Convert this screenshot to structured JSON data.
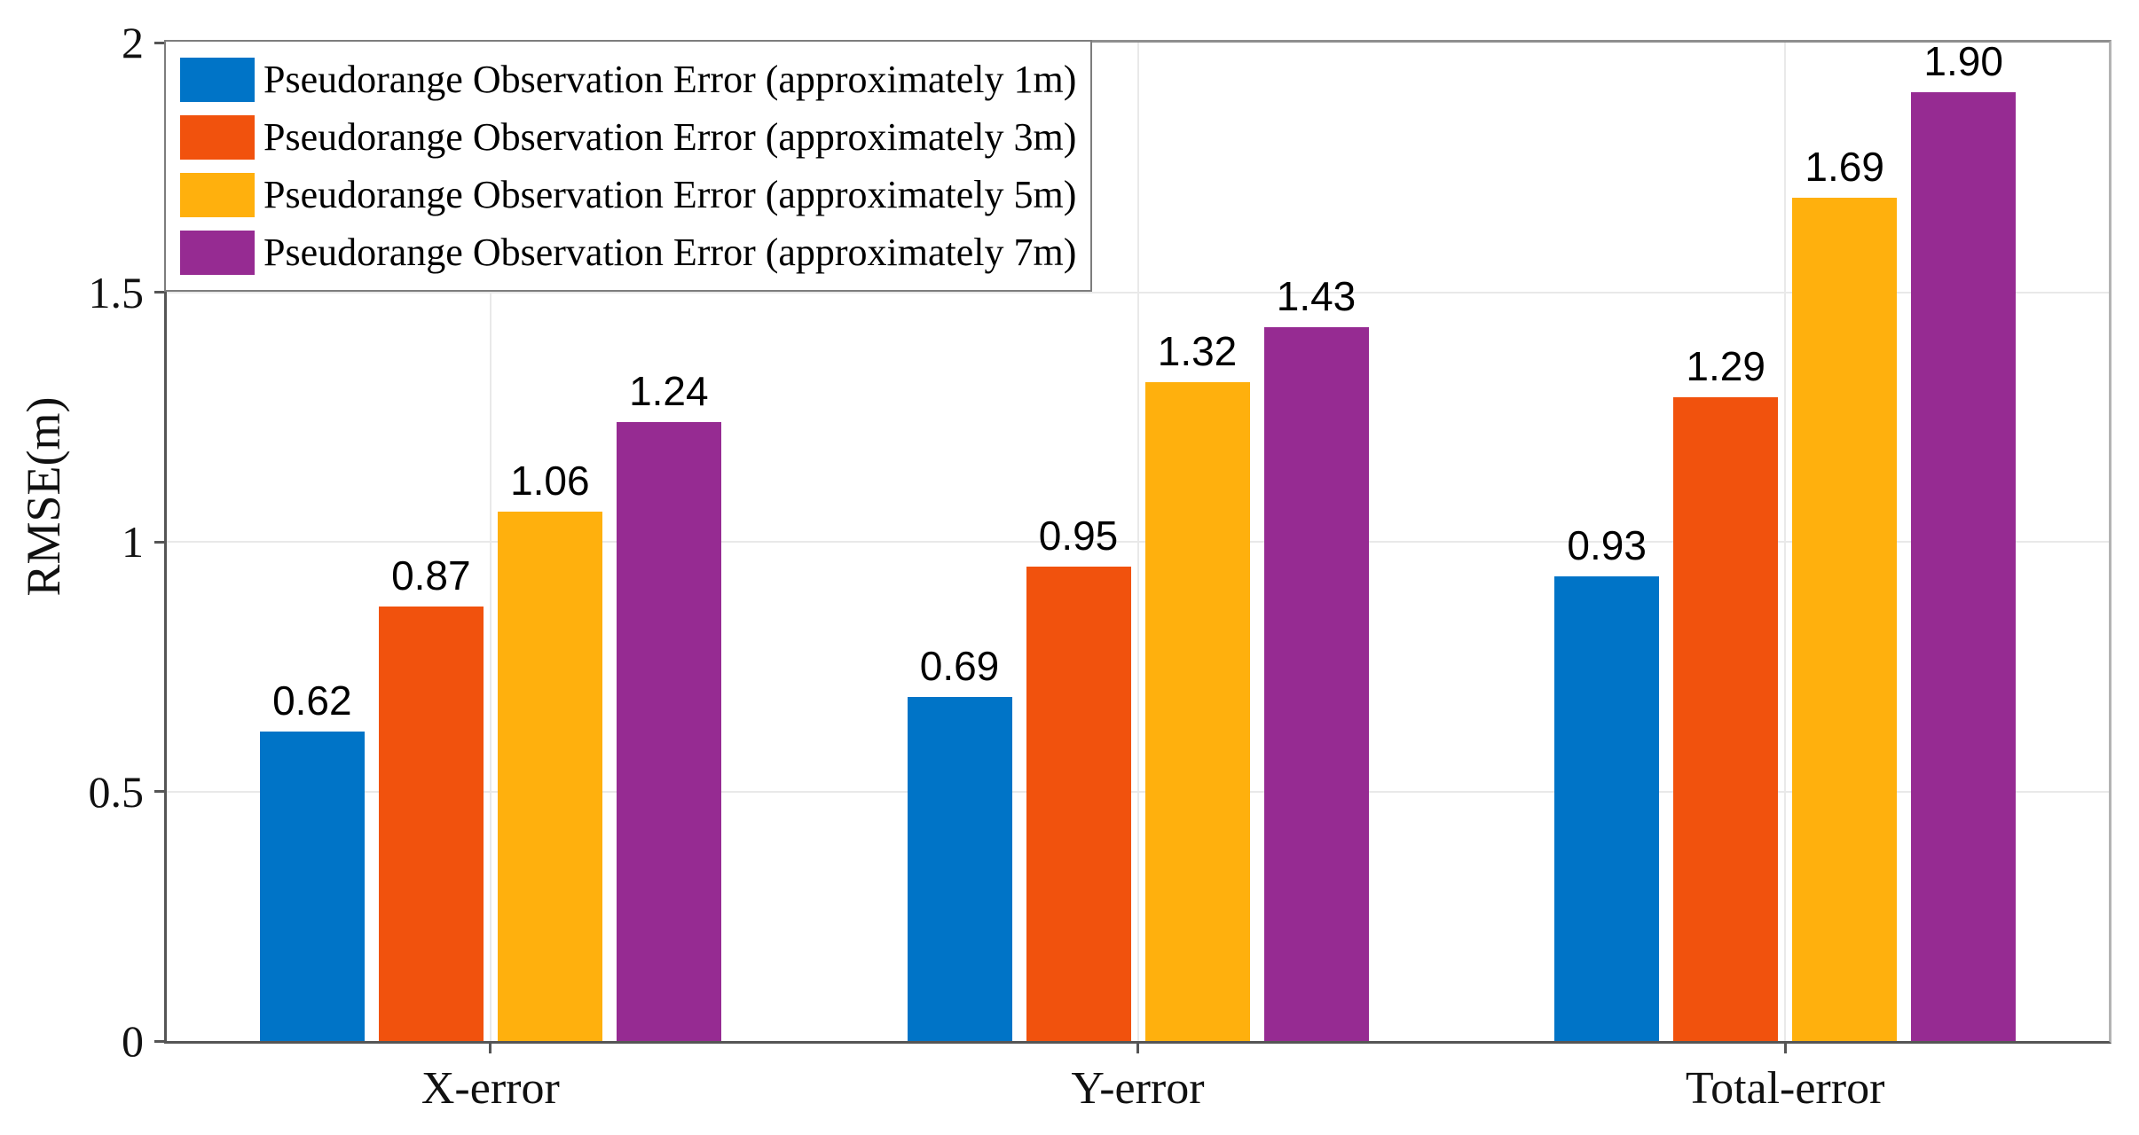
{
  "figure": {
    "background": "#ffffff",
    "axis_color": "#555555",
    "box_color": "#9a9a9a",
    "grid_color": "#e9e9e9"
  },
  "chart_data": {
    "type": "bar",
    "title": "",
    "categories": [
      "X-error",
      "Y-error",
      "Total-error"
    ],
    "series": [
      {
        "name": "Pseudorange Observation Error (approximately 1m)",
        "color": "#0074C7",
        "values": [
          0.62,
          0.69,
          0.93
        ]
      },
      {
        "name": "Pseudorange Observation Error (approximately 3m)",
        "color": "#F1520D",
        "values": [
          0.87,
          0.95,
          1.29
        ]
      },
      {
        "name": "Pseudorange Observation Error (approximately 5m)",
        "color": "#FFB00D",
        "values": [
          1.06,
          1.32,
          1.69
        ]
      },
      {
        "name": "Pseudorange Observation Error (approximately 7m)",
        "color": "#962B92",
        "values": [
          1.24,
          1.43,
          1.9
        ]
      }
    ],
    "xlabel": "",
    "ylabel": "RMSE(m)",
    "ylim": [
      0,
      2
    ],
    "yticks": [
      0,
      0.5,
      1,
      1.5,
      2
    ],
    "ytick_labels": [
      "0",
      "0.5",
      "1",
      "1.5",
      "2"
    ],
    "grid": true,
    "bar_value_labels": [
      [
        "0.62",
        "0.87",
        "1.06",
        "1.24"
      ],
      [
        "0.69",
        "0.95",
        "1.32",
        "1.43"
      ],
      [
        "0.93",
        "1.29",
        "1.69",
        "1.90"
      ]
    ],
    "legend_position": "top-left"
  }
}
